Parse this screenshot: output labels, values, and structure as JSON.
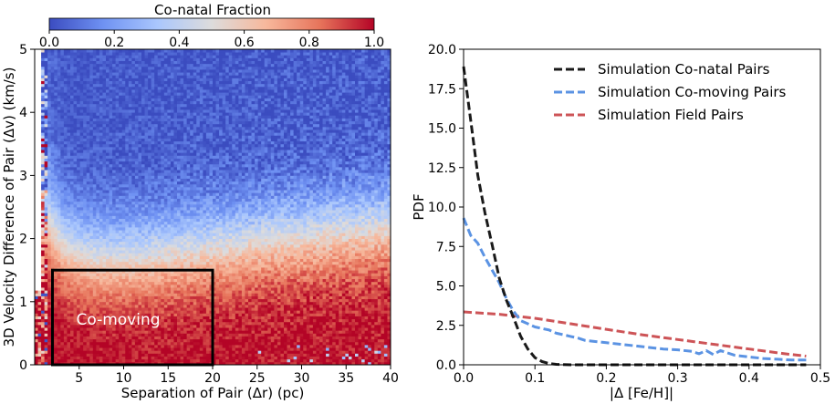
{
  "chart_data": [
    {
      "type": "heatmap",
      "title": "",
      "xlabel": "Separation of Pair (Δr) (pc)",
      "ylabel": "3D Velocity Difference of Pair (Δv) (km/s)",
      "xlim": [
        0,
        40
      ],
      "ylim": [
        0,
        5
      ],
      "xticks": [
        "5",
        "10",
        "15",
        "20",
        "25",
        "30",
        "35",
        "40"
      ],
      "yticks": [
        "0",
        "1",
        "2",
        "3",
        "4",
        "5"
      ],
      "colorbar": {
        "label": "Co-natal Fraction",
        "range": [
          0.0,
          1.0
        ],
        "ticks": [
          "0.0",
          "0.2",
          "0.4",
          "0.6",
          "0.8",
          "1.0"
        ],
        "colormap": "coolwarm",
        "stops": [
          "#3b4cc0",
          "#6f92f3",
          "#aac7fd",
          "#dddcdc",
          "#f7b89c",
          "#e7745b",
          "#b40426"
        ]
      },
      "region": {
        "label": "Co-moving",
        "x": [
          2,
          20
        ],
        "y": [
          0,
          1.5
        ]
      }
    },
    {
      "type": "line",
      "title": "",
      "xlabel": "|Δ [Fe/H]|",
      "ylabel": "PDF",
      "xlim": [
        0,
        0.5
      ],
      "ylim": [
        0,
        20
      ],
      "xticks": [
        "0.0",
        "0.1",
        "0.2",
        "0.3",
        "0.4",
        "0.5"
      ],
      "yticks": [
        "0.0",
        "2.5",
        "5.0",
        "7.5",
        "10.0",
        "12.5",
        "15.0",
        "17.5",
        "20.0"
      ],
      "legend_position": "top-right",
      "series": [
        {
          "name": "Simulation Co-natal Pairs",
          "color": "#1a1a1a",
          "x": [
            0.0,
            0.01,
            0.02,
            0.03,
            0.04,
            0.05,
            0.06,
            0.07,
            0.08,
            0.09,
            0.1,
            0.11,
            0.12,
            0.13,
            0.15,
            0.2,
            0.3,
            0.4,
            0.48
          ],
          "y": [
            18.9,
            15.5,
            12.0,
            9.6,
            7.6,
            5.5,
            4.1,
            3.0,
            1.8,
            1.0,
            0.45,
            0.2,
            0.08,
            0.03,
            0.0,
            0.0,
            0.0,
            0.0,
            0.0
          ]
        },
        {
          "name": "Simulation Co-moving Pairs",
          "color": "#5b93e3",
          "x": [
            0.0,
            0.01,
            0.02,
            0.03,
            0.04,
            0.05,
            0.06,
            0.07,
            0.08,
            0.09,
            0.1,
            0.11,
            0.12,
            0.13,
            0.14,
            0.15,
            0.16,
            0.17,
            0.18,
            0.2,
            0.22,
            0.24,
            0.26,
            0.28,
            0.3,
            0.32,
            0.33,
            0.34,
            0.35,
            0.36,
            0.37,
            0.38,
            0.4,
            0.42,
            0.44,
            0.46,
            0.48
          ],
          "y": [
            9.3,
            8.2,
            7.7,
            6.8,
            6.0,
            5.2,
            4.2,
            3.4,
            2.8,
            2.6,
            2.4,
            2.3,
            2.2,
            2.0,
            1.9,
            1.8,
            1.7,
            1.55,
            1.5,
            1.4,
            1.3,
            1.2,
            1.1,
            1.0,
            0.95,
            0.85,
            0.7,
            0.9,
            0.65,
            0.9,
            0.75,
            0.6,
            0.5,
            0.4,
            0.35,
            0.3,
            0.3
          ]
        },
        {
          "name": "Simulation Field Pairs",
          "color": "#cd5457",
          "x": [
            0.0,
            0.05,
            0.1,
            0.15,
            0.2,
            0.25,
            0.3,
            0.35,
            0.4,
            0.45,
            0.48
          ],
          "y": [
            3.35,
            3.2,
            2.95,
            2.6,
            2.25,
            1.9,
            1.6,
            1.3,
            1.0,
            0.7,
            0.55
          ]
        }
      ]
    }
  ]
}
